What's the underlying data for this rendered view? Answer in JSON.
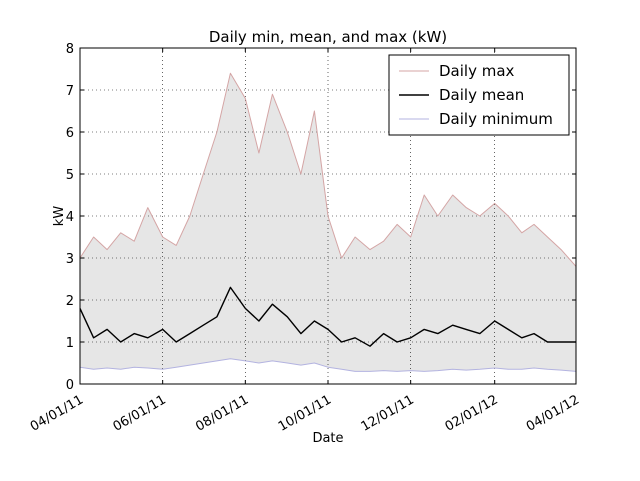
{
  "chart_data": {
    "type": "area",
    "title": "Daily min, mean, and max (kW)",
    "xlabel": "Date",
    "ylabel": "kW",
    "x_range": [
      "2011-04-01",
      "2012-04-01"
    ],
    "ylim": [
      0,
      8
    ],
    "yticks": [
      "0",
      "1",
      "2",
      "3",
      "4",
      "5",
      "6",
      "7",
      "8"
    ],
    "xticks": [
      {
        "date": "2011-04-01",
        "label": "04/01/11"
      },
      {
        "date": "2011-06-01",
        "label": "06/01/11"
      },
      {
        "date": "2011-08-01",
        "label": "08/01/11"
      },
      {
        "date": "2011-10-01",
        "label": "10/01/11"
      },
      {
        "date": "2011-12-01",
        "label": "12/01/11"
      },
      {
        "date": "2012-02-01",
        "label": "02/01/12"
      },
      {
        "date": "2012-04-01",
        "label": "04/01/12"
      }
    ],
    "grid": true,
    "legend_position": "top-right",
    "fill_between": {
      "from": "Daily minimum",
      "to": "Daily max",
      "color": "#e6e6e6"
    },
    "series": [
      {
        "name": "Daily max",
        "color": "#d4a5a5",
        "points": [
          [
            "2011-04-01",
            3.0
          ],
          [
            "2011-04-11",
            3.5
          ],
          [
            "2011-04-21",
            3.2
          ],
          [
            "2011-05-01",
            3.6
          ],
          [
            "2011-05-11",
            3.4
          ],
          [
            "2011-05-21",
            4.2
          ],
          [
            "2011-06-01",
            3.5
          ],
          [
            "2011-06-11",
            3.3
          ],
          [
            "2011-06-21",
            4.0
          ],
          [
            "2011-07-01",
            5.0
          ],
          [
            "2011-07-11",
            6.0
          ],
          [
            "2011-07-21",
            7.4
          ],
          [
            "2011-08-01",
            6.8
          ],
          [
            "2011-08-11",
            5.5
          ],
          [
            "2011-08-21",
            6.9
          ],
          [
            "2011-09-01",
            6.0
          ],
          [
            "2011-09-11",
            5.0
          ],
          [
            "2011-09-21",
            6.5
          ],
          [
            "2011-10-01",
            4.0
          ],
          [
            "2011-10-11",
            3.0
          ],
          [
            "2011-10-21",
            3.5
          ],
          [
            "2011-11-01",
            3.2
          ],
          [
            "2011-11-11",
            3.4
          ],
          [
            "2011-11-21",
            3.8
          ],
          [
            "2011-12-01",
            3.5
          ],
          [
            "2011-12-11",
            4.5
          ],
          [
            "2011-12-21",
            4.0
          ],
          [
            "2012-01-01",
            4.5
          ],
          [
            "2012-01-11",
            4.2
          ],
          [
            "2012-01-21",
            4.0
          ],
          [
            "2012-02-01",
            4.3
          ],
          [
            "2012-02-11",
            4.0
          ],
          [
            "2012-02-21",
            3.6
          ],
          [
            "2012-03-01",
            3.8
          ],
          [
            "2012-03-11",
            3.5
          ],
          [
            "2012-03-21",
            3.2
          ],
          [
            "2012-04-01",
            2.8
          ]
        ]
      },
      {
        "name": "Daily mean",
        "color": "#000000",
        "points": [
          [
            "2011-04-01",
            1.8
          ],
          [
            "2011-04-11",
            1.1
          ],
          [
            "2011-04-21",
            1.3
          ],
          [
            "2011-05-01",
            1.0
          ],
          [
            "2011-05-11",
            1.2
          ],
          [
            "2011-05-21",
            1.1
          ],
          [
            "2011-06-01",
            1.3
          ],
          [
            "2011-06-11",
            1.0
          ],
          [
            "2011-06-21",
            1.2
          ],
          [
            "2011-07-01",
            1.4
          ],
          [
            "2011-07-11",
            1.6
          ],
          [
            "2011-07-21",
            2.3
          ],
          [
            "2011-08-01",
            1.8
          ],
          [
            "2011-08-11",
            1.5
          ],
          [
            "2011-08-21",
            1.9
          ],
          [
            "2011-09-01",
            1.6
          ],
          [
            "2011-09-11",
            1.2
          ],
          [
            "2011-09-21",
            1.5
          ],
          [
            "2011-10-01",
            1.3
          ],
          [
            "2011-10-11",
            1.0
          ],
          [
            "2011-10-21",
            1.1
          ],
          [
            "2011-11-01",
            0.9
          ],
          [
            "2011-11-11",
            1.2
          ],
          [
            "2011-11-21",
            1.0
          ],
          [
            "2011-12-01",
            1.1
          ],
          [
            "2011-12-11",
            1.3
          ],
          [
            "2011-12-21",
            1.2
          ],
          [
            "2012-01-01",
            1.4
          ],
          [
            "2012-01-11",
            1.3
          ],
          [
            "2012-01-21",
            1.2
          ],
          [
            "2012-02-01",
            1.5
          ],
          [
            "2012-02-11",
            1.3
          ],
          [
            "2012-02-21",
            1.1
          ],
          [
            "2012-03-01",
            1.2
          ],
          [
            "2012-03-11",
            1.0
          ],
          [
            "2012-03-21",
            1.0
          ],
          [
            "2012-04-01",
            1.0
          ]
        ]
      },
      {
        "name": "Daily minimum",
        "color": "#b3b3e0",
        "points": [
          [
            "2011-04-01",
            0.4
          ],
          [
            "2011-04-11",
            0.35
          ],
          [
            "2011-04-21",
            0.38
          ],
          [
            "2011-05-01",
            0.35
          ],
          [
            "2011-05-11",
            0.4
          ],
          [
            "2011-05-21",
            0.38
          ],
          [
            "2011-06-01",
            0.35
          ],
          [
            "2011-06-11",
            0.4
          ],
          [
            "2011-06-21",
            0.45
          ],
          [
            "2011-07-01",
            0.5
          ],
          [
            "2011-07-11",
            0.55
          ],
          [
            "2011-07-21",
            0.6
          ],
          [
            "2011-08-01",
            0.55
          ],
          [
            "2011-08-11",
            0.5
          ],
          [
            "2011-08-21",
            0.55
          ],
          [
            "2011-09-01",
            0.5
          ],
          [
            "2011-09-11",
            0.45
          ],
          [
            "2011-09-21",
            0.5
          ],
          [
            "2011-10-01",
            0.4
          ],
          [
            "2011-10-11",
            0.35
          ],
          [
            "2011-10-21",
            0.3
          ],
          [
            "2011-11-01",
            0.3
          ],
          [
            "2011-11-11",
            0.32
          ],
          [
            "2011-11-21",
            0.3
          ],
          [
            "2011-12-01",
            0.32
          ],
          [
            "2011-12-11",
            0.3
          ],
          [
            "2011-12-21",
            0.32
          ],
          [
            "2012-01-01",
            0.35
          ],
          [
            "2012-01-11",
            0.33
          ],
          [
            "2012-01-21",
            0.35
          ],
          [
            "2012-02-01",
            0.38
          ],
          [
            "2012-02-11",
            0.35
          ],
          [
            "2012-02-21",
            0.35
          ],
          [
            "2012-03-01",
            0.38
          ],
          [
            "2012-03-11",
            0.35
          ],
          [
            "2012-03-21",
            0.33
          ],
          [
            "2012-04-01",
            0.3
          ]
        ]
      }
    ]
  }
}
